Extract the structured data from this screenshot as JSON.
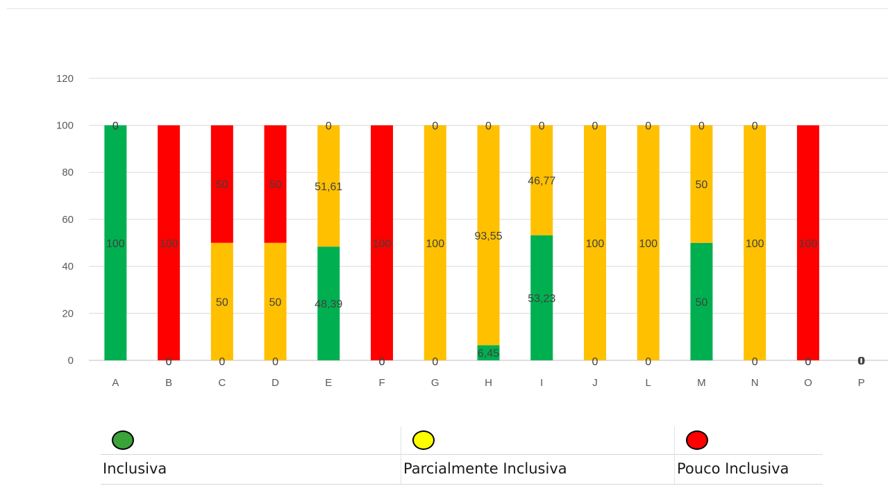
{
  "chart_data": {
    "type": "bar",
    "stacked": true,
    "categories": [
      "A",
      "B",
      "C",
      "D",
      "E",
      "F",
      "G",
      "H",
      "I",
      "J",
      "L",
      "M",
      "N",
      "O",
      "P"
    ],
    "ylim": [
      0,
      120
    ],
    "yticks": [
      0,
      20,
      40,
      60,
      80,
      100,
      120
    ],
    "grid": true,
    "series": [
      {
        "name": "Inclusiva",
        "color": "#00b050",
        "values": [
          100,
          0,
          0,
          0,
          48.39,
          0,
          0,
          6.45,
          53.23,
          0,
          0,
          50,
          0,
          0,
          0
        ],
        "labels": [
          "100",
          "0",
          "0",
          "0",
          "48,39",
          "0",
          "0",
          "6,45",
          "53,23",
          "0",
          "0",
          "50",
          "0",
          "0",
          "0"
        ]
      },
      {
        "name": "Parcialmente Inclusiva",
        "color": "#ffc000",
        "values": [
          0,
          0,
          50,
          50,
          51.61,
          0,
          100,
          93.55,
          46.77,
          100,
          100,
          50,
          100,
          0,
          0
        ],
        "labels": [
          "0",
          "0",
          "50",
          "50",
          "51,61",
          "0",
          "100",
          "93,55",
          "46,77",
          "100",
          "100",
          "50",
          "100",
          "0",
          "0"
        ]
      },
      {
        "name": "Pouco Inclusiva",
        "color": "#ff0000",
        "values": [
          0,
          100,
          50,
          50,
          0,
          100,
          0,
          0,
          0,
          0,
          0,
          0,
          0,
          100,
          0
        ],
        "labels": [
          "0",
          "100",
          "50",
          "50",
          "0",
          "100",
          "0",
          "0",
          "0",
          "0",
          "0",
          "0",
          "0",
          "100",
          "0"
        ]
      }
    ]
  },
  "legend": {
    "items": [
      {
        "label": "Inclusiva",
        "icon": "green-circle-icon",
        "color": "#3aa33a"
      },
      {
        "label": "Parcialmente Inclusiva",
        "icon": "yellow-circle-icon",
        "color": "#ffff00"
      },
      {
        "label": "Pouco Inclusiva",
        "icon": "red-circle-icon",
        "color": "#ff0000"
      }
    ]
  }
}
